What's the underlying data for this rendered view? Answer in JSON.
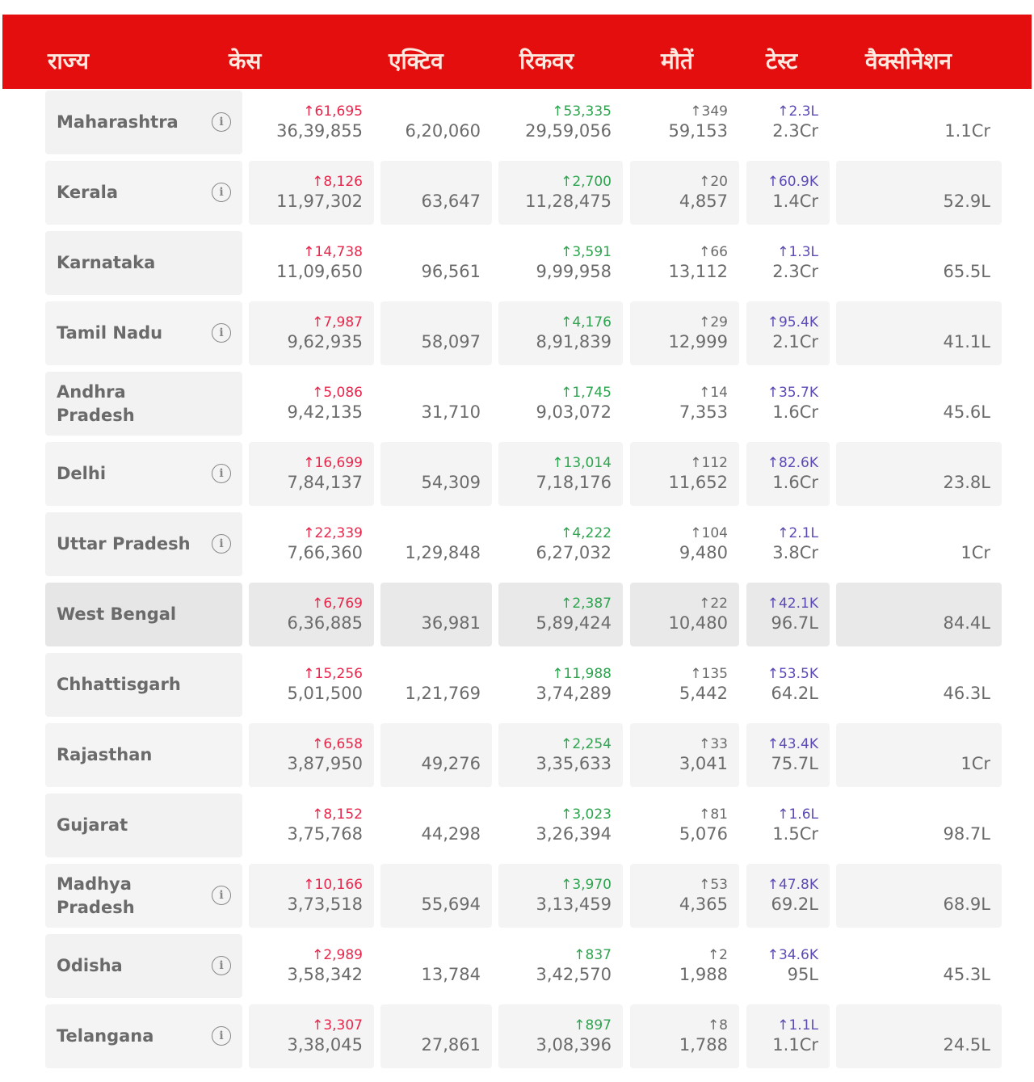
{
  "header": {
    "state": "राज्य",
    "cases": "केस",
    "active": "एक्टिव",
    "recovered": "रिकवर",
    "deaths": "मौतें",
    "tests": "टेस्ट",
    "vaccination": "वैक्सीनेशन"
  },
  "colors": {
    "header": "#e50e0e",
    "cases_delta": "#e8264b",
    "recovered_delta": "#2ea44f",
    "deaths_delta": "#6b6b6b",
    "tests_delta": "#5a4bb5"
  },
  "rows": [
    {
      "state": "Maharashtra",
      "info": true,
      "cases_delta": "↑61,695",
      "cases": "36,39,855",
      "active": "6,20,060",
      "recovered_delta": "↑53,335",
      "recovered": "29,59,056",
      "deaths_delta": "↑349",
      "deaths": "59,153",
      "tests_delta": "↑2.3L",
      "tests": "2.3Cr",
      "vaccination": "1.1Cr"
    },
    {
      "state": "Kerala",
      "info": true,
      "cases_delta": "↑8,126",
      "cases": "11,97,302",
      "active": "63,647",
      "recovered_delta": "↑2,700",
      "recovered": "11,28,475",
      "deaths_delta": "↑20",
      "deaths": "4,857",
      "tests_delta": "↑60.9K",
      "tests": "1.4Cr",
      "vaccination": "52.9L"
    },
    {
      "state": "Karnataka",
      "info": false,
      "cases_delta": "↑14,738",
      "cases": "11,09,650",
      "active": "96,561",
      "recovered_delta": "↑3,591",
      "recovered": "9,99,958",
      "deaths_delta": "↑66",
      "deaths": "13,112",
      "tests_delta": "↑1.3L",
      "tests": "2.3Cr",
      "vaccination": "65.5L"
    },
    {
      "state": "Tamil Nadu",
      "info": true,
      "cases_delta": "↑7,987",
      "cases": "9,62,935",
      "active": "58,097",
      "recovered_delta": "↑4,176",
      "recovered": "8,91,839",
      "deaths_delta": "↑29",
      "deaths": "12,999",
      "tests_delta": "↑95.4K",
      "tests": "2.1Cr",
      "vaccination": "41.1L"
    },
    {
      "state": "Andhra Pradesh",
      "info": false,
      "cases_delta": "↑5,086",
      "cases": "9,42,135",
      "active": "31,710",
      "recovered_delta": "↑1,745",
      "recovered": "9,03,072",
      "deaths_delta": "↑14",
      "deaths": "7,353",
      "tests_delta": "↑35.7K",
      "tests": "1.6Cr",
      "vaccination": "45.6L"
    },
    {
      "state": "Delhi",
      "info": true,
      "cases_delta": "↑16,699",
      "cases": "7,84,137",
      "active": "54,309",
      "recovered_delta": "↑13,014",
      "recovered": "7,18,176",
      "deaths_delta": "↑112",
      "deaths": "11,652",
      "tests_delta": "↑82.6K",
      "tests": "1.6Cr",
      "vaccination": "23.8L"
    },
    {
      "state": "Uttar Pradesh",
      "info": true,
      "cases_delta": "↑22,339",
      "cases": "7,66,360",
      "active": "1,29,848",
      "recovered_delta": "↑4,222",
      "recovered": "6,27,032",
      "deaths_delta": "↑104",
      "deaths": "9,480",
      "tests_delta": "↑2.1L",
      "tests": "3.8Cr",
      "vaccination": "1Cr"
    },
    {
      "state": "West Bengal",
      "info": false,
      "highlight": true,
      "cases_delta": "↑6,769",
      "cases": "6,36,885",
      "active": "36,981",
      "recovered_delta": "↑2,387",
      "recovered": "5,89,424",
      "deaths_delta": "↑22",
      "deaths": "10,480",
      "tests_delta": "↑42.1K",
      "tests": "96.7L",
      "vaccination": "84.4L"
    },
    {
      "state": "Chhattisgarh",
      "info": false,
      "cases_delta": "↑15,256",
      "cases": "5,01,500",
      "active": "1,21,769",
      "recovered_delta": "↑11,988",
      "recovered": "3,74,289",
      "deaths_delta": "↑135",
      "deaths": "5,442",
      "tests_delta": "↑53.5K",
      "tests": "64.2L",
      "vaccination": "46.3L"
    },
    {
      "state": "Rajasthan",
      "info": false,
      "cases_delta": "↑6,658",
      "cases": "3,87,950",
      "active": "49,276",
      "recovered_delta": "↑2,254",
      "recovered": "3,35,633",
      "deaths_delta": "↑33",
      "deaths": "3,041",
      "tests_delta": "↑43.4K",
      "tests": "75.7L",
      "vaccination": "1Cr"
    },
    {
      "state": "Gujarat",
      "info": false,
      "cases_delta": "↑8,152",
      "cases": "3,75,768",
      "active": "44,298",
      "recovered_delta": "↑3,023",
      "recovered": "3,26,394",
      "deaths_delta": "↑81",
      "deaths": "5,076",
      "tests_delta": "↑1.6L",
      "tests": "1.5Cr",
      "vaccination": "98.7L"
    },
    {
      "state": "Madhya Pradesh",
      "info": true,
      "cases_delta": "↑10,166",
      "cases": "3,73,518",
      "active": "55,694",
      "recovered_delta": "↑3,970",
      "recovered": "3,13,459",
      "deaths_delta": "↑53",
      "deaths": "4,365",
      "tests_delta": "↑47.8K",
      "tests": "69.2L",
      "vaccination": "68.9L"
    },
    {
      "state": "Odisha",
      "info": true,
      "cases_delta": "↑2,989",
      "cases": "3,58,342",
      "active": "13,784",
      "recovered_delta": "↑837",
      "recovered": "3,42,570",
      "deaths_delta": "↑2",
      "deaths": "1,988",
      "tests_delta": "↑34.6K",
      "tests": "95L",
      "vaccination": "45.3L"
    },
    {
      "state": "Telangana",
      "info": true,
      "cases_delta": "↑3,307",
      "cases": "3,38,045",
      "active": "27,861",
      "recovered_delta": "↑897",
      "recovered": "3,08,396",
      "deaths_delta": "↑8",
      "deaths": "1,788",
      "tests_delta": "↑1.1L",
      "tests": "1.1Cr",
      "vaccination": "24.5L"
    }
  ]
}
